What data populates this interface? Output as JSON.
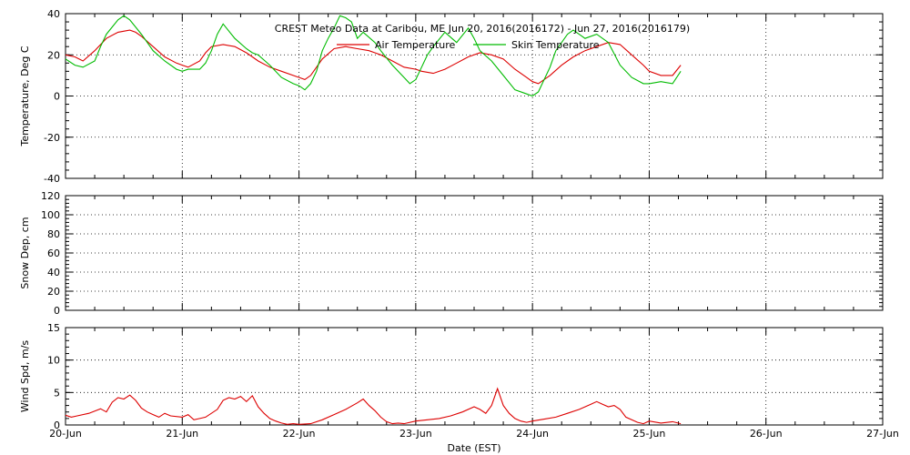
{
  "chart_data": [
    {
      "type": "line",
      "title": "CREST Meteo Data at Caribou, ME   Jun 20, 2016(2016172) - Jun 27, 2016(2016179)",
      "ylabel": "Temperature, Deg C",
      "ylim": [
        -40,
        40
      ],
      "yticks": [
        "40",
        "20",
        "0",
        "-20",
        "-40"
      ],
      "grid": true,
      "legend_position": "top-center",
      "series": [
        {
          "name": "Air Temperature",
          "color": "#dd0000",
          "x": [
            0,
            0.08,
            0.15,
            0.25,
            0.35,
            0.45,
            0.55,
            0.6,
            0.65,
            0.75,
            0.85,
            0.95,
            1.0,
            1.05,
            1.15,
            1.2,
            1.25,
            1.35,
            1.45,
            1.55,
            1.6,
            1.65,
            1.75,
            1.85,
            1.95,
            2.0,
            2.05,
            2.1,
            2.2,
            2.3,
            2.4,
            2.5,
            2.6,
            2.65,
            2.7,
            2.8,
            2.9,
            3.0,
            3.05,
            3.15,
            3.25,
            3.35,
            3.45,
            3.55,
            3.65,
            3.75,
            3.85,
            3.95,
            4.0,
            4.05,
            4.15,
            4.25,
            4.35,
            4.45,
            4.55,
            4.65,
            4.75,
            4.85,
            4.95,
            5.0,
            5.1,
            5.2,
            5.27
          ],
          "values": [
            20,
            19,
            17,
            22,
            28,
            31,
            32,
            31,
            29,
            24,
            19,
            16,
            15,
            14,
            17,
            21,
            24,
            25,
            24,
            21,
            19,
            17,
            14,
            12,
            10,
            9,
            8,
            10,
            18,
            23,
            24,
            23,
            22,
            21,
            20,
            17,
            14,
            13,
            12,
            11,
            13,
            16,
            19,
            21,
            20,
            18,
            13,
            9,
            7,
            6,
            10,
            15,
            19,
            22,
            24,
            26,
            25,
            20,
            15,
            12,
            10,
            10,
            15
          ]
        },
        {
          "name": "Skin Temperature",
          "color": "#00bb00",
          "x": [
            0,
            0.08,
            0.15,
            0.25,
            0.3,
            0.35,
            0.45,
            0.5,
            0.55,
            0.65,
            0.75,
            0.85,
            0.95,
            1.0,
            1.05,
            1.15,
            1.2,
            1.25,
            1.3,
            1.35,
            1.45,
            1.55,
            1.6,
            1.65,
            1.75,
            1.85,
            1.95,
            2.0,
            2.05,
            2.1,
            2.15,
            2.2,
            2.25,
            2.3,
            2.35,
            2.4,
            2.45,
            2.5,
            2.55,
            2.65,
            2.7,
            2.8,
            2.9,
            2.95,
            3.0,
            3.05,
            3.1,
            3.15,
            3.25,
            3.35,
            3.45,
            3.5,
            3.55,
            3.65,
            3.75,
            3.85,
            3.95,
            4.0,
            4.05,
            4.15,
            4.2,
            4.3,
            4.35,
            4.45,
            4.55,
            4.65,
            4.75,
            4.85,
            4.95,
            5.0,
            5.1,
            5.2,
            5.27
          ],
          "values": [
            18,
            15,
            14,
            17,
            24,
            30,
            37,
            39,
            37,
            30,
            22,
            17,
            13,
            12,
            13,
            13,
            16,
            22,
            30,
            35,
            28,
            23,
            21,
            20,
            15,
            9,
            6,
            5,
            3,
            6,
            12,
            22,
            28,
            33,
            39,
            38,
            36,
            28,
            31,
            26,
            22,
            15,
            9,
            6,
            8,
            14,
            20,
            24,
            31,
            26,
            33,
            28,
            22,
            17,
            10,
            3,
            1,
            0,
            2,
            14,
            22,
            30,
            32,
            28,
            30,
            26,
            15,
            9,
            6,
            6,
            7,
            6,
            12
          ]
        }
      ]
    },
    {
      "type": "line",
      "ylabel": "Snow Dep, cm",
      "ylim": [
        0,
        120
      ],
      "yticks": [
        "120",
        "100",
        "80",
        "60",
        "40",
        "20",
        "0"
      ],
      "grid": true,
      "series": []
    },
    {
      "type": "line",
      "ylabel": "Wind Spd, m/s",
      "xlabel": "Date (EST)",
      "ylim": [
        0,
        15
      ],
      "yticks": [
        "15",
        "10",
        "5",
        "0"
      ],
      "x_tick_labels": [
        "20-Jun",
        "21-Jun",
        "22-Jun",
        "23-Jun",
        "24-Jun",
        "25-Jun",
        "26-Jun",
        "27-Jun"
      ],
      "grid": true,
      "series": [
        {
          "name": "",
          "color": "#dd0000",
          "x": [
            0,
            0.05,
            0.1,
            0.2,
            0.3,
            0.35,
            0.4,
            0.45,
            0.5,
            0.55,
            0.6,
            0.65,
            0.7,
            0.75,
            0.8,
            0.85,
            0.9,
            1.0,
            1.05,
            1.1,
            1.15,
            1.2,
            1.3,
            1.35,
            1.4,
            1.45,
            1.5,
            1.55,
            1.6,
            1.65,
            1.7,
            1.75,
            1.8,
            1.85,
            1.9,
            1.95,
            2.0,
            2.1,
            2.2,
            2.3,
            2.4,
            2.5,
            2.55,
            2.6,
            2.65,
            2.7,
            2.75,
            2.8,
            2.85,
            2.9,
            3.0,
            3.1,
            3.2,
            3.3,
            3.4,
            3.5,
            3.55,
            3.6,
            3.65,
            3.7,
            3.75,
            3.8,
            3.85,
            3.9,
            3.95,
            4.0,
            4.1,
            4.2,
            4.3,
            4.4,
            4.5,
            4.55,
            4.6,
            4.65,
            4.7,
            4.75,
            4.8,
            4.9,
            4.95,
            5.0,
            5.1,
            5.2,
            5.27
          ],
          "values": [
            1.5,
            1.2,
            1.4,
            1.8,
            2.5,
            2.0,
            3.5,
            4.2,
            4.0,
            4.6,
            3.8,
            2.6,
            2.0,
            1.6,
            1.2,
            1.8,
            1.4,
            1.2,
            1.6,
            0.8,
            1.0,
            1.2,
            2.4,
            3.8,
            4.2,
            4.0,
            4.4,
            3.6,
            4.5,
            2.8,
            1.8,
            1.0,
            0.6,
            0.3,
            0.1,
            0.2,
            0.1,
            0.2,
            0.8,
            1.6,
            2.4,
            3.4,
            4.0,
            3.0,
            2.2,
            1.2,
            0.5,
            0.2,
            0.3,
            0.2,
            0.6,
            0.8,
            1.0,
            1.4,
            2.0,
            2.8,
            2.4,
            1.8,
            3.0,
            5.6,
            3.0,
            1.8,
            1.0,
            0.6,
            0.4,
            0.6,
            0.9,
            1.2,
            1.8,
            2.4,
            3.2,
            3.6,
            3.2,
            2.8,
            3.0,
            2.4,
            1.2,
            0.4,
            0.2,
            0.6,
            0.3,
            0.5,
            0.2
          ]
        }
      ]
    }
  ]
}
